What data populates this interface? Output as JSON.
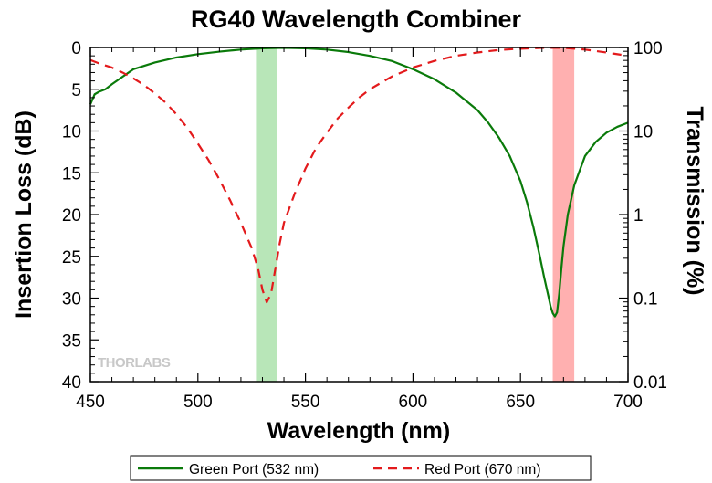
{
  "chart_data": {
    "type": "line",
    "title": "RG40 Wavelength Combiner",
    "xlabel": "Wavelength (nm)",
    "ylabel": "Insertion Loss (dB)",
    "y2label": "Transmission (%)",
    "xlim": [
      450,
      700
    ],
    "ylim": [
      0,
      40
    ],
    "y_inverted": true,
    "y2_scale": "log",
    "y2lim": [
      0.01,
      100
    ],
    "x_ticks": [
      "450",
      "500",
      "550",
      "600",
      "650",
      "700"
    ],
    "y_ticks": [
      "0",
      "5",
      "10",
      "15",
      "20",
      "25",
      "30",
      "35",
      "40"
    ],
    "y2_ticks": [
      "100",
      "10",
      "1",
      "0.1",
      "0.01"
    ],
    "grid": false,
    "legend_position": "bottom",
    "watermark": "THORLABS",
    "bands": [
      {
        "x0": 527,
        "x1": 537,
        "color": "#b8e6b8"
      },
      {
        "x0": 665,
        "x1": 675,
        "color": "#ffb0b0"
      }
    ],
    "series": [
      {
        "name": "Green Port (532 nm)",
        "color": "#0a7a0a",
        "style": "solid",
        "x": [
          450,
          451,
          452,
          454,
          457,
          460,
          465,
          470,
          480,
          490,
          500,
          510,
          520,
          530,
          540,
          550,
          560,
          570,
          580,
          590,
          600,
          610,
          620,
          630,
          635,
          640,
          645,
          650,
          653,
          656,
          659,
          661,
          663,
          664,
          665,
          666,
          667,
          668,
          669,
          670,
          672,
          675,
          680,
          685,
          690,
          695,
          700
        ],
        "values": [
          6.8,
          6.2,
          5.6,
          5.3,
          5.0,
          4.4,
          3.5,
          2.6,
          1.8,
          1.2,
          0.8,
          0.5,
          0.25,
          0.1,
          0.05,
          0.1,
          0.25,
          0.55,
          1.0,
          1.6,
          2.6,
          3.8,
          5.4,
          7.5,
          9.0,
          10.8,
          13.0,
          16.0,
          18.5,
          21.5,
          25.0,
          27.5,
          29.8,
          31.0,
          31.8,
          32.2,
          31.7,
          29.5,
          26.5,
          23.8,
          20.0,
          16.5,
          13.0,
          11.3,
          10.2,
          9.5,
          9.0
        ]
      },
      {
        "name": "Red Port (670 nm)",
        "color": "#e31a1c",
        "style": "dashed",
        "x": [
          450,
          455,
          460,
          465,
          470,
          475,
          480,
          485,
          490,
          495,
          500,
          505,
          510,
          515,
          520,
          525,
          528,
          530,
          532,
          534,
          536,
          538,
          540,
          545,
          550,
          555,
          560,
          565,
          570,
          575,
          580,
          590,
          600,
          610,
          620,
          630,
          640,
          650,
          660,
          670,
          680,
          690,
          700
        ],
        "values": [
          1.5,
          2.0,
          2.4,
          3.0,
          3.7,
          4.5,
          5.5,
          6.6,
          8.0,
          9.6,
          11.5,
          13.5,
          15.8,
          18.3,
          21.0,
          24.0,
          26.5,
          29.0,
          30.5,
          29.5,
          26.5,
          23.5,
          21.0,
          17.5,
          14.5,
          12.0,
          10.2,
          8.5,
          7.2,
          6.0,
          5.0,
          3.5,
          2.4,
          1.6,
          1.0,
          0.6,
          0.3,
          0.15,
          0.05,
          0.05,
          0.25,
          0.6,
          1.0
        ]
      }
    ]
  }
}
